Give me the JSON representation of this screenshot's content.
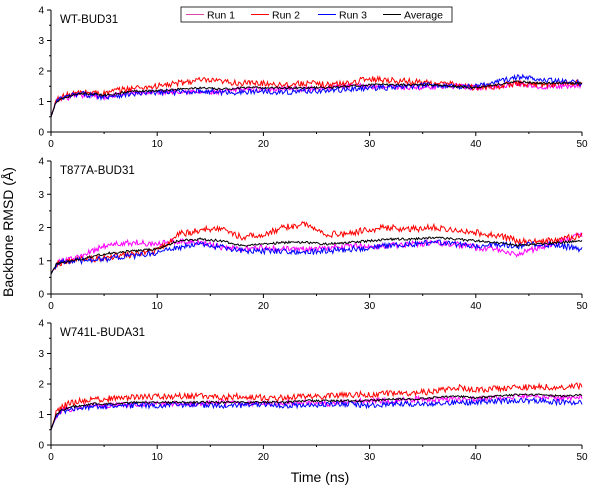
{
  "figure": {
    "ylabel": "Backbone RMSD (Å)",
    "xlabel": "Time (ns)"
  },
  "legend": {
    "entries": [
      {
        "label": "Run 1",
        "color": "#d946a6"
      },
      {
        "label": "Run 2",
        "color": "#ff0000"
      },
      {
        "label": "Run 3",
        "color": "#0000ff"
      },
      {
        "label": "Average",
        "color": "#000000"
      }
    ]
  },
  "chart_data": [
    {
      "type": "line",
      "title": "WT-BUD31",
      "xlim": [
        0,
        50
      ],
      "ylim": [
        0,
        4
      ],
      "x_ticks": [
        0,
        10,
        20,
        30,
        40,
        50
      ],
      "y_ticks": [
        0,
        1,
        2,
        3,
        4
      ],
      "series": [
        {
          "name": "Run 1",
          "color": "#ff00ff",
          "x": [
            0,
            0.5,
            1,
            2,
            3,
            4,
            5,
            6,
            8,
            10,
            12,
            14,
            16,
            18,
            20,
            22,
            24,
            26,
            28,
            30,
            32,
            34,
            36,
            38,
            40,
            42,
            44,
            46,
            48,
            50
          ],
          "y": [
            0.5,
            1.0,
            1.1,
            1.15,
            1.2,
            1.2,
            1.15,
            1.2,
            1.3,
            1.3,
            1.35,
            1.3,
            1.3,
            1.4,
            1.4,
            1.45,
            1.4,
            1.45,
            1.5,
            1.5,
            1.5,
            1.45,
            1.5,
            1.5,
            1.45,
            1.5,
            1.6,
            1.5,
            1.5,
            1.55
          ]
        },
        {
          "name": "Run 2",
          "color": "#ff0000",
          "x": [
            0,
            0.5,
            1,
            2,
            3,
            4,
            5,
            6,
            8,
            10,
            12,
            14,
            16,
            18,
            20,
            22,
            24,
            26,
            28,
            30,
            32,
            34,
            36,
            38,
            40,
            42,
            44,
            46,
            48,
            50
          ],
          "y": [
            0.5,
            1.05,
            1.15,
            1.25,
            1.3,
            1.3,
            1.25,
            1.35,
            1.45,
            1.5,
            1.6,
            1.7,
            1.65,
            1.6,
            1.6,
            1.55,
            1.6,
            1.55,
            1.6,
            1.75,
            1.7,
            1.65,
            1.6,
            1.55,
            1.45,
            1.5,
            1.6,
            1.55,
            1.6,
            1.6
          ]
        },
        {
          "name": "Run 3",
          "color": "#0000ff",
          "x": [
            0,
            0.5,
            1,
            2,
            3,
            4,
            5,
            6,
            8,
            10,
            12,
            14,
            16,
            18,
            20,
            22,
            24,
            26,
            28,
            30,
            32,
            34,
            36,
            38,
            40,
            42,
            44,
            46,
            48,
            50
          ],
          "y": [
            0.5,
            1.0,
            1.1,
            1.2,
            1.25,
            1.2,
            1.15,
            1.2,
            1.25,
            1.3,
            1.3,
            1.35,
            1.3,
            1.3,
            1.35,
            1.3,
            1.35,
            1.35,
            1.4,
            1.45,
            1.45,
            1.5,
            1.55,
            1.5,
            1.5,
            1.65,
            1.8,
            1.75,
            1.65,
            1.6
          ]
        },
        {
          "name": "Average",
          "color": "#000000",
          "x": [
            0,
            0.5,
            1,
            2,
            3,
            4,
            5,
            6,
            8,
            10,
            12,
            14,
            16,
            18,
            20,
            22,
            24,
            26,
            28,
            30,
            32,
            34,
            36,
            38,
            40,
            42,
            44,
            46,
            48,
            50
          ],
          "y": [
            0.5,
            1.0,
            1.1,
            1.2,
            1.25,
            1.25,
            1.2,
            1.25,
            1.35,
            1.35,
            1.4,
            1.45,
            1.4,
            1.45,
            1.45,
            1.45,
            1.45,
            1.45,
            1.5,
            1.55,
            1.55,
            1.55,
            1.55,
            1.5,
            1.45,
            1.55,
            1.65,
            1.6,
            1.6,
            1.6
          ]
        }
      ]
    },
    {
      "type": "line",
      "title": "T877A-BUD31",
      "xlim": [
        0,
        50
      ],
      "ylim": [
        0,
        4
      ],
      "x_ticks": [
        0,
        10,
        20,
        30,
        40,
        50
      ],
      "y_ticks": [
        0,
        1,
        2,
        3,
        4
      ],
      "series": [
        {
          "name": "Run 1",
          "color": "#ff00ff",
          "x": [
            0,
            0.5,
            1,
            2,
            3,
            4,
            5,
            6,
            8,
            10,
            12,
            14,
            16,
            18,
            20,
            22,
            24,
            26,
            28,
            30,
            32,
            34,
            36,
            38,
            40,
            42,
            44,
            46,
            48,
            50
          ],
          "y": [
            0.6,
            0.9,
            1.0,
            1.05,
            1.15,
            1.3,
            1.45,
            1.5,
            1.55,
            1.5,
            1.6,
            1.55,
            1.4,
            1.35,
            1.4,
            1.35,
            1.35,
            1.4,
            1.45,
            1.4,
            1.45,
            1.5,
            1.55,
            1.5,
            1.4,
            1.35,
            1.2,
            1.4,
            1.6,
            1.8
          ]
        },
        {
          "name": "Run 2",
          "color": "#ff0000",
          "x": [
            0,
            0.5,
            1,
            2,
            3,
            4,
            5,
            6,
            8,
            10,
            12,
            14,
            16,
            18,
            20,
            22,
            24,
            26,
            28,
            30,
            32,
            34,
            36,
            38,
            40,
            42,
            44,
            46,
            48,
            50
          ],
          "y": [
            0.6,
            0.9,
            0.95,
            1.0,
            1.05,
            1.05,
            1.1,
            1.15,
            1.2,
            1.3,
            1.8,
            1.9,
            2.0,
            1.7,
            1.8,
            2.0,
            2.1,
            1.8,
            1.8,
            1.95,
            2.0,
            1.95,
            2.0,
            1.95,
            1.85,
            1.75,
            1.6,
            1.55,
            1.65,
            1.75
          ]
        },
        {
          "name": "Run 3",
          "color": "#0000ff",
          "x": [
            0,
            0.5,
            1,
            2,
            3,
            4,
            5,
            6,
            8,
            10,
            12,
            14,
            16,
            18,
            20,
            22,
            24,
            26,
            28,
            30,
            32,
            34,
            36,
            38,
            40,
            42,
            44,
            46,
            48,
            50
          ],
          "y": [
            0.6,
            0.9,
            0.95,
            1.0,
            1.0,
            1.05,
            1.05,
            1.1,
            1.15,
            1.25,
            1.4,
            1.5,
            1.4,
            1.3,
            1.3,
            1.3,
            1.25,
            1.3,
            1.35,
            1.4,
            1.45,
            1.5,
            1.55,
            1.5,
            1.45,
            1.5,
            1.45,
            1.5,
            1.45,
            1.35
          ]
        },
        {
          "name": "Average",
          "color": "#000000",
          "x": [
            0,
            0.5,
            1,
            2,
            3,
            4,
            5,
            6,
            8,
            10,
            12,
            14,
            16,
            18,
            20,
            22,
            24,
            26,
            28,
            30,
            32,
            34,
            36,
            38,
            40,
            42,
            44,
            46,
            48,
            50
          ],
          "y": [
            0.6,
            0.9,
            0.95,
            1.0,
            1.05,
            1.15,
            1.2,
            1.25,
            1.3,
            1.35,
            1.6,
            1.65,
            1.6,
            1.45,
            1.5,
            1.55,
            1.55,
            1.5,
            1.55,
            1.6,
            1.65,
            1.65,
            1.7,
            1.65,
            1.6,
            1.55,
            1.45,
            1.5,
            1.55,
            1.6
          ]
        }
      ]
    },
    {
      "type": "line",
      "title": "W741L-BUDA31",
      "xlim": [
        0,
        50
      ],
      "ylim": [
        0,
        4
      ],
      "x_ticks": [
        0,
        10,
        20,
        30,
        40,
        50
      ],
      "y_ticks": [
        0,
        1,
        2,
        3,
        4
      ],
      "series": [
        {
          "name": "Run 1",
          "color": "#ff00ff",
          "x": [
            0,
            0.5,
            1,
            2,
            3,
            4,
            5,
            6,
            8,
            10,
            12,
            14,
            16,
            18,
            20,
            22,
            24,
            26,
            28,
            30,
            32,
            34,
            36,
            38,
            40,
            42,
            44,
            46,
            48,
            50
          ],
          "y": [
            0.5,
            0.95,
            1.1,
            1.2,
            1.25,
            1.3,
            1.3,
            1.3,
            1.35,
            1.35,
            1.35,
            1.35,
            1.4,
            1.35,
            1.35,
            1.4,
            1.4,
            1.35,
            1.4,
            1.45,
            1.45,
            1.5,
            1.5,
            1.5,
            1.5,
            1.55,
            1.6,
            1.55,
            1.55,
            1.55
          ]
        },
        {
          "name": "Run 2",
          "color": "#ff0000",
          "x": [
            0,
            0.5,
            1,
            2,
            3,
            4,
            5,
            6,
            8,
            10,
            12,
            14,
            16,
            18,
            20,
            22,
            24,
            26,
            28,
            30,
            32,
            34,
            36,
            38,
            40,
            42,
            44,
            46,
            48,
            50
          ],
          "y": [
            0.5,
            1.05,
            1.25,
            1.4,
            1.45,
            1.5,
            1.5,
            1.55,
            1.55,
            1.6,
            1.6,
            1.6,
            1.55,
            1.6,
            1.55,
            1.55,
            1.6,
            1.6,
            1.65,
            1.65,
            1.7,
            1.7,
            1.75,
            1.9,
            1.8,
            1.85,
            1.9,
            1.9,
            1.9,
            1.95
          ]
        },
        {
          "name": "Run 3",
          "color": "#0000ff",
          "x": [
            0,
            0.5,
            1,
            2,
            3,
            4,
            5,
            6,
            8,
            10,
            12,
            14,
            16,
            18,
            20,
            22,
            24,
            26,
            28,
            30,
            32,
            34,
            36,
            38,
            40,
            42,
            44,
            46,
            48,
            50
          ],
          "y": [
            0.5,
            0.95,
            1.1,
            1.2,
            1.25,
            1.25,
            1.25,
            1.25,
            1.3,
            1.3,
            1.3,
            1.3,
            1.3,
            1.3,
            1.35,
            1.3,
            1.3,
            1.35,
            1.35,
            1.3,
            1.35,
            1.35,
            1.35,
            1.4,
            1.4,
            1.45,
            1.45,
            1.45,
            1.4,
            1.4
          ]
        },
        {
          "name": "Average",
          "color": "#000000",
          "x": [
            0,
            0.5,
            1,
            2,
            3,
            4,
            5,
            6,
            8,
            10,
            12,
            14,
            16,
            18,
            20,
            22,
            24,
            26,
            28,
            30,
            32,
            34,
            36,
            38,
            40,
            42,
            44,
            46,
            48,
            50
          ],
          "y": [
            0.5,
            1.0,
            1.15,
            1.25,
            1.3,
            1.35,
            1.35,
            1.35,
            1.4,
            1.4,
            1.4,
            1.4,
            1.4,
            1.4,
            1.4,
            1.4,
            1.45,
            1.45,
            1.45,
            1.45,
            1.5,
            1.5,
            1.55,
            1.6,
            1.55,
            1.6,
            1.65,
            1.65,
            1.6,
            1.65
          ]
        }
      ]
    }
  ]
}
